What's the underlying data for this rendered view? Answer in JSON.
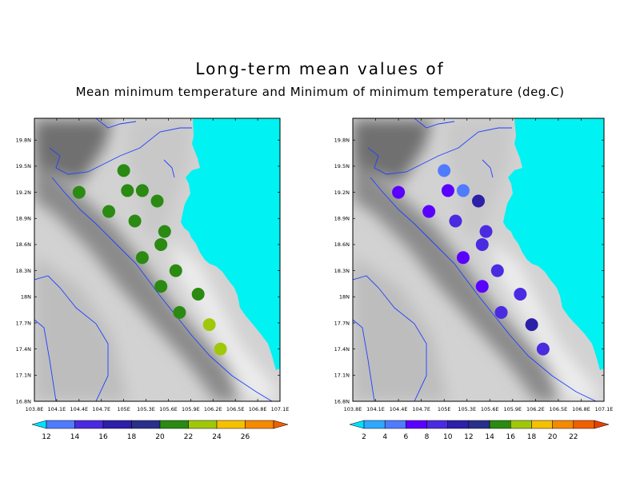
{
  "title_line1": "Long-term mean values of",
  "title_line2": "Mean minimum temperature and Minimum of minimum temperature (deg.C)",
  "colors": {
    "sea": "#00f2f2",
    "river": "#2040ff",
    "frame": "#000000"
  },
  "x_ticks": [
    "103.8E",
    "104.1E",
    "104.4E",
    "104.7E",
    "105E",
    "105.3E",
    "105.6E",
    "105.9E",
    "106.2E",
    "106.5E",
    "106.8E",
    "107.1E"
  ],
  "y_ticks": [
    "19.8N",
    "19.5N",
    "19.2N",
    "18.9N",
    "18.6N",
    "18.3N",
    "18N",
    "17.7N",
    "17.4N",
    "17.1N",
    "16.8N"
  ],
  "chart_data": [
    {
      "type": "map",
      "name": "Mean minimum temperature",
      "xlim": [
        103.8,
        107.1
      ],
      "ylim": [
        16.8,
        20.05
      ],
      "colorbar": {
        "labels": [
          "12",
          "14",
          "16",
          "18",
          "20",
          "22",
          "24",
          "26"
        ],
        "colors": [
          "#00e0ff",
          "#4f7bff",
          "#4a2be0",
          "#2c1fa8",
          "#2a2f8a",
          "#2a8a12",
          "#a0c80a",
          "#f5c000",
          "#f58a00",
          "#f06000"
        ]
      },
      "stations": [
        {
          "lon": 104.4,
          "lat": 19.2,
          "value": 21
        },
        {
          "lon": 104.8,
          "lat": 18.98,
          "value": 21
        },
        {
          "lon": 105.0,
          "lat": 19.45,
          "value": 21
        },
        {
          "lon": 105.05,
          "lat": 19.22,
          "value": 21
        },
        {
          "lon": 105.25,
          "lat": 19.22,
          "value": 21
        },
        {
          "lon": 105.15,
          "lat": 18.87,
          "value": 21
        },
        {
          "lon": 105.45,
          "lat": 19.1,
          "value": 21
        },
        {
          "lon": 105.55,
          "lat": 18.75,
          "value": 21
        },
        {
          "lon": 105.5,
          "lat": 18.6,
          "value": 21
        },
        {
          "lon": 105.25,
          "lat": 18.45,
          "value": 21
        },
        {
          "lon": 105.7,
          "lat": 18.3,
          "value": 21
        },
        {
          "lon": 105.5,
          "lat": 18.12,
          "value": 21
        },
        {
          "lon": 106.0,
          "lat": 18.03,
          "value": 21
        },
        {
          "lon": 105.75,
          "lat": 17.82,
          "value": 21
        },
        {
          "lon": 106.15,
          "lat": 17.68,
          "value": 23
        },
        {
          "lon": 106.3,
          "lat": 17.4,
          "value": 23
        }
      ]
    },
    {
      "type": "map",
      "name": "Minimum of minimum temperature",
      "xlim": [
        103.8,
        107.1
      ],
      "ylim": [
        16.8,
        20.05
      ],
      "colorbar": {
        "labels": [
          "2",
          "4",
          "6",
          "8",
          "10",
          "12",
          "14",
          "16",
          "18",
          "20",
          "22"
        ],
        "colors": [
          "#00e0ff",
          "#2fa8ff",
          "#4f7bff",
          "#5a00ff",
          "#4a2be0",
          "#2c1fa8",
          "#2a2f8a",
          "#2a8a12",
          "#a0c80a",
          "#f5c000",
          "#f58a00",
          "#f06000",
          "#e84000"
        ]
      },
      "stations": [
        {
          "lon": 104.4,
          "lat": 19.2,
          "value": 7
        },
        {
          "lon": 104.8,
          "lat": 18.98,
          "value": 7
        },
        {
          "lon": 105.0,
          "lat": 19.45,
          "value": 5
        },
        {
          "lon": 105.05,
          "lat": 19.22,
          "value": 7
        },
        {
          "lon": 105.25,
          "lat": 19.22,
          "value": 5
        },
        {
          "lon": 105.15,
          "lat": 18.87,
          "value": 9
        },
        {
          "lon": 105.45,
          "lat": 19.1,
          "value": 11
        },
        {
          "lon": 105.55,
          "lat": 18.75,
          "value": 9
        },
        {
          "lon": 105.5,
          "lat": 18.6,
          "value": 9
        },
        {
          "lon": 105.25,
          "lat": 18.45,
          "value": 7
        },
        {
          "lon": 105.7,
          "lat": 18.3,
          "value": 9
        },
        {
          "lon": 105.5,
          "lat": 18.12,
          "value": 7
        },
        {
          "lon": 106.0,
          "lat": 18.03,
          "value": 9
        },
        {
          "lon": 105.75,
          "lat": 17.82,
          "value": 9
        },
        {
          "lon": 106.15,
          "lat": 17.68,
          "value": 11
        },
        {
          "lon": 106.3,
          "lat": 17.4,
          "value": 9
        }
      ]
    }
  ]
}
